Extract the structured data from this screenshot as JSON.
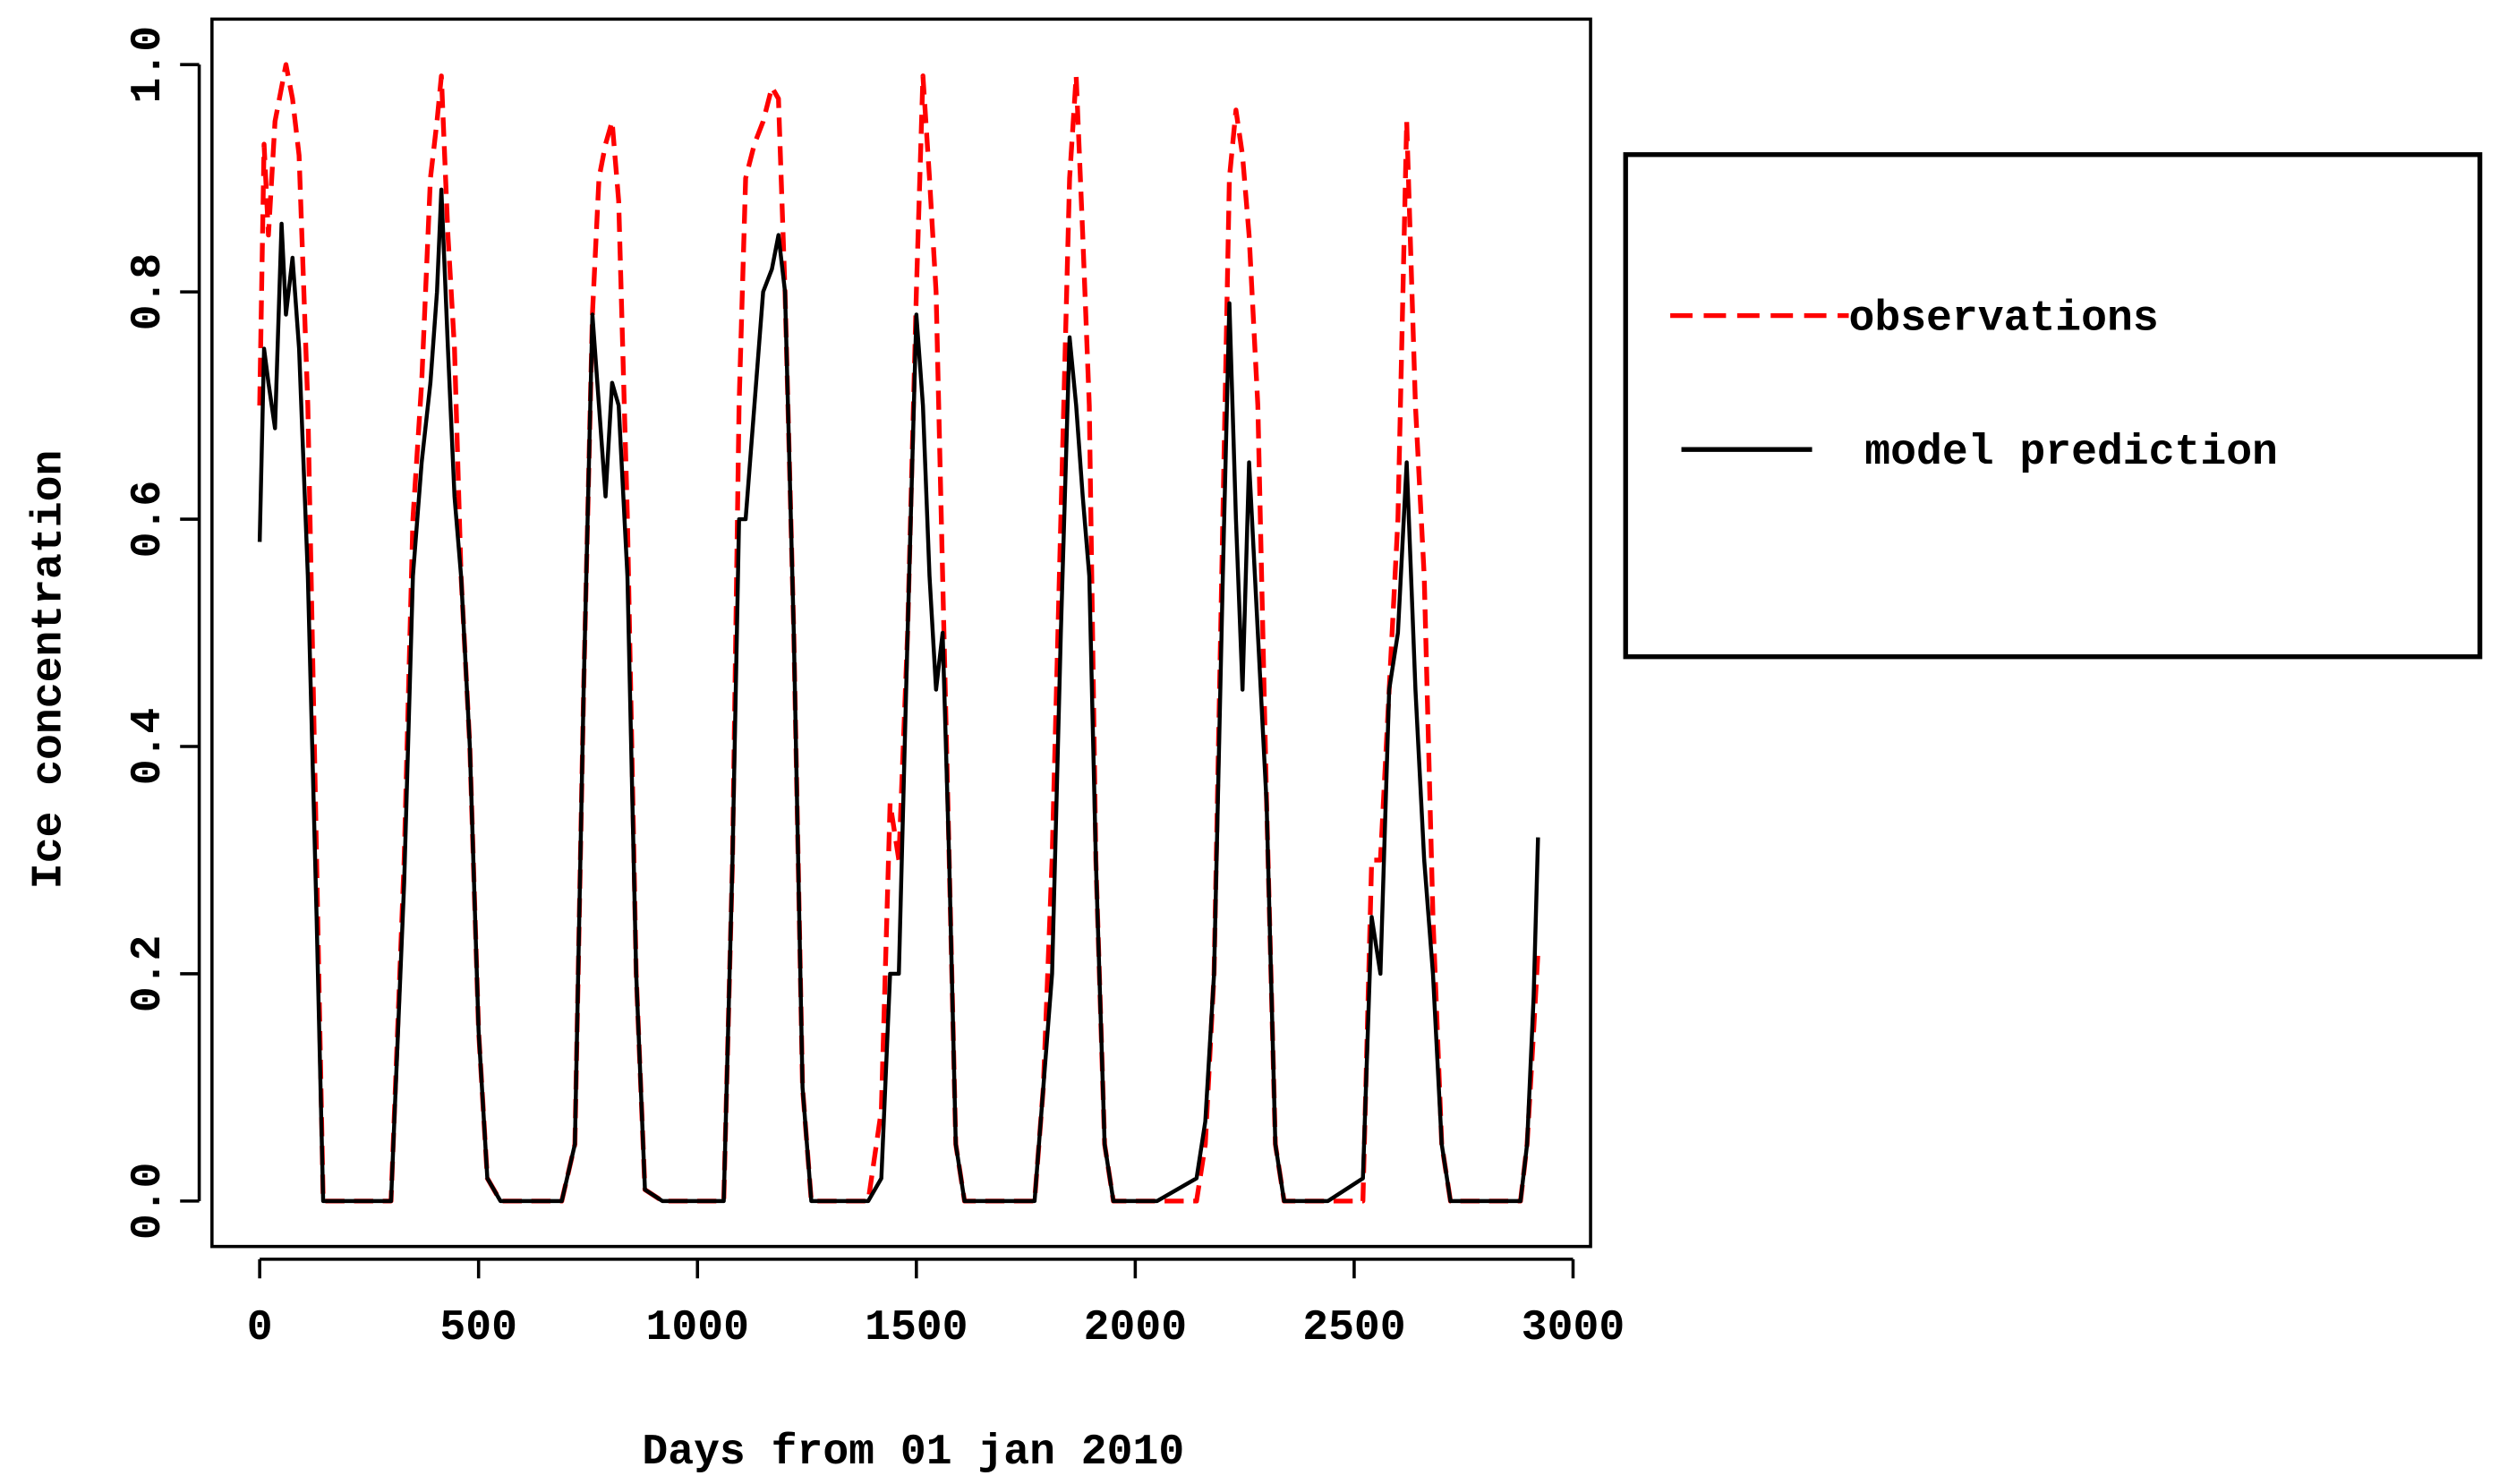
{
  "chart_data": {
    "type": "line",
    "xlabel": "Days from 01 jan 2010",
    "ylabel": "Ice concentration",
    "xlim": [
      -109,
      3040
    ],
    "ylim": [
      -0.04,
      1.04
    ],
    "xticks": [
      0,
      500,
      1000,
      1500,
      2000,
      2500,
      3000
    ],
    "yticks": [
      {
        "value": 0,
        "label": "0.0"
      },
      0.2,
      0.4,
      0.6,
      0.8,
      {
        "value": 1,
        "label": "1.0"
      }
    ],
    "legend": "right",
    "x": [
      0,
      10,
      20,
      35,
      50,
      60,
      75,
      90,
      110,
      130,
      145,
      200,
      250,
      300,
      330,
      350,
      370,
      390,
      405,
      415,
      430,
      445,
      460,
      480,
      500,
      520,
      550,
      620,
      690,
      720,
      740,
      760,
      775,
      790,
      805,
      820,
      840,
      860,
      880,
      920,
      1000,
      1060,
      1080,
      1095,
      1110,
      1130,
      1150,
      1170,
      1185,
      1200,
      1220,
      1240,
      1260,
      1320,
      1390,
      1420,
      1440,
      1460,
      1480,
      1500,
      1515,
      1530,
      1545,
      1560,
      1575,
      1590,
      1610,
      1700,
      1770,
      1790,
      1810,
      1830,
      1850,
      1865,
      1880,
      1895,
      1910,
      1930,
      1950,
      2050,
      2140,
      2160,
      2180,
      2200,
      2215,
      2230,
      2245,
      2260,
      2280,
      2300,
      2320,
      2340,
      2440,
      2520,
      2540,
      2560,
      2580,
      2600,
      2620,
      2640,
      2660,
      2680,
      2700,
      2720,
      2800,
      2880,
      2895,
      2910,
      2920
    ],
    "series": [
      {
        "name": "observations",
        "color": "#ff0000",
        "dash": true,
        "values": [
          0.7,
          0.93,
          0.85,
          0.95,
          0.98,
          1.0,
          0.97,
          0.92,
          0.7,
          0.3,
          0,
          0,
          0,
          0,
          0.3,
          0.6,
          0.72,
          0.9,
          0.95,
          0.99,
          0.85,
          0.75,
          0.55,
          0.4,
          0.15,
          0.02,
          0,
          0,
          0,
          0.05,
          0.45,
          0.78,
          0.9,
          0.93,
          0.95,
          0.88,
          0.6,
          0.2,
          0.01,
          0,
          0,
          0,
          0.3,
          0.7,
          0.9,
          0.93,
          0.95,
          0.98,
          0.97,
          0.8,
          0.5,
          0.1,
          0,
          0,
          0,
          0.08,
          0.35,
          0.3,
          0.5,
          0.8,
          0.99,
          0.9,
          0.8,
          0.55,
          0.3,
          0.05,
          0,
          0,
          0,
          0.1,
          0.3,
          0.6,
          0.9,
          0.99,
          0.85,
          0.7,
          0.3,
          0.05,
          0,
          0,
          0,
          0.05,
          0.2,
          0.6,
          0.9,
          0.96,
          0.92,
          0.85,
          0.7,
          0.35,
          0.05,
          0,
          0,
          0,
          0.3,
          0.3,
          0.45,
          0.6,
          0.95,
          0.7,
          0.55,
          0.25,
          0.05,
          0,
          0,
          0,
          0.05,
          0.15,
          0.22
        ]
      },
      {
        "name": "model prediction",
        "color": "#000000",
        "dash": false,
        "values": [
          0.58,
          0.75,
          0.72,
          0.68,
          0.86,
          0.78,
          0.83,
          0.75,
          0.55,
          0.25,
          0,
          0,
          0,
          0,
          0.28,
          0.55,
          0.65,
          0.72,
          0.8,
          0.89,
          0.75,
          0.62,
          0.55,
          0.4,
          0.15,
          0.02,
          0,
          0,
          0,
          0.05,
          0.45,
          0.78,
          0.7,
          0.62,
          0.72,
          0.7,
          0.55,
          0.2,
          0.01,
          0,
          0,
          0,
          0.3,
          0.6,
          0.6,
          0.7,
          0.8,
          0.82,
          0.85,
          0.8,
          0.5,
          0.1,
          0,
          0,
          0,
          0.02,
          0.2,
          0.2,
          0.5,
          0.78,
          0.7,
          0.55,
          0.45,
          0.5,
          0.3,
          0.05,
          0,
          0,
          0,
          0.1,
          0.2,
          0.5,
          0.76,
          0.7,
          0.62,
          0.55,
          0.3,
          0.05,
          0,
          0,
          0.02,
          0.07,
          0.2,
          0.55,
          0.79,
          0.6,
          0.45,
          0.65,
          0.5,
          0.35,
          0.05,
          0,
          0,
          0.02,
          0.25,
          0.2,
          0.45,
          0.5,
          0.65,
          0.45,
          0.3,
          0.2,
          0.05,
          0,
          0,
          0,
          0.05,
          0.18,
          0.32
        ]
      }
    ]
  }
}
